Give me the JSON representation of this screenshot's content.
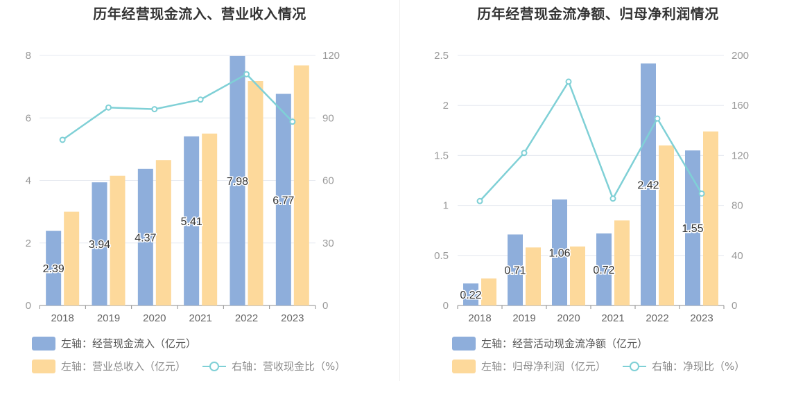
{
  "colors": {
    "blue": "#8eaedb",
    "orange": "#fdd99b",
    "line": "#7fd0d6",
    "grid": "#e6e9f0",
    "axis": "#999999"
  },
  "panels": [
    {
      "title": "历年经营现金流入、营业收入情况",
      "legend": [
        {
          "kind": "bar",
          "color": "blue",
          "label": "左轴：经营现金流入（亿元）"
        },
        {
          "kind": "bar",
          "color": "orange",
          "label": "左轴：营业总收入（亿元）"
        },
        {
          "kind": "line",
          "color": "line",
          "label": "右轴：营收现金比（%）"
        }
      ]
    },
    {
      "title": "历年经营现金流净额、归母净利润情况",
      "legend": [
        {
          "kind": "bar",
          "color": "blue",
          "label": "左轴：经营活动现金流净额（亿元）"
        },
        {
          "kind": "bar",
          "color": "orange",
          "label": "左轴：归母净利润（亿元）"
        },
        {
          "kind": "line",
          "color": "line",
          "label": "右轴：净现比（%）"
        }
      ]
    }
  ],
  "chart_data": [
    {
      "type": "bar",
      "title": "历年经营现金流入、营业收入情况",
      "categories": [
        "2018",
        "2019",
        "2020",
        "2021",
        "2022",
        "2023"
      ],
      "left_axis": {
        "range": [
          0,
          8
        ],
        "ticks": [
          "0",
          "2",
          "4",
          "6",
          "8"
        ],
        "tick_values": [
          0,
          2,
          4,
          6,
          8
        ]
      },
      "right_axis": {
        "range": [
          0,
          120
        ],
        "ticks": [
          "0",
          "30",
          "60",
          "90",
          "120"
        ],
        "tick_values": [
          0,
          30,
          60,
          90,
          120
        ]
      },
      "series": [
        {
          "name": "经营现金流入（亿元）",
          "type": "bar",
          "axis": "left",
          "color": "blue",
          "values": [
            2.39,
            3.94,
            4.37,
            5.41,
            7.98,
            6.77
          ],
          "labels": [
            "2.39",
            "3.94",
            "4.37",
            "5.41",
            "7.98",
            "6.77"
          ]
        },
        {
          "name": "营业总收入（亿元）",
          "type": "bar",
          "axis": "left",
          "color": "orange",
          "values": [
            3.0,
            4.15,
            4.65,
            5.5,
            7.18,
            7.68
          ]
        },
        {
          "name": "营收现金比（%）",
          "type": "line",
          "axis": "right",
          "color": "line",
          "values": [
            79.5,
            95,
            94.2,
            98.8,
            111,
            88.2
          ]
        }
      ],
      "grid": true
    },
    {
      "type": "bar",
      "title": "历年经营现金流净额、归母净利润情况",
      "categories": [
        "2018",
        "2019",
        "2020",
        "2021",
        "2022",
        "2023"
      ],
      "left_axis": {
        "range": [
          0,
          2.5
        ],
        "ticks": [
          "0",
          "0.5",
          "1",
          "1.5",
          "2",
          "2.5"
        ],
        "tick_values": [
          0,
          0.5,
          1,
          1.5,
          2,
          2.5
        ]
      },
      "right_axis": {
        "range": [
          0,
          200
        ],
        "ticks": [
          "0",
          "40",
          "80",
          "120",
          "160",
          "200"
        ],
        "tick_values": [
          0,
          40,
          80,
          120,
          160,
          200
        ]
      },
      "series": [
        {
          "name": "经营活动现金流净额（亿元）",
          "type": "bar",
          "axis": "left",
          "color": "blue",
          "values": [
            0.22,
            0.71,
            1.06,
            0.72,
            2.42,
            1.55
          ],
          "labels": [
            "0.22",
            "0.71",
            "1.06",
            "0.72",
            "2.42",
            "1.55"
          ]
        },
        {
          "name": "归母净利润（亿元）",
          "type": "bar",
          "axis": "left",
          "color": "orange",
          "values": [
            0.27,
            0.58,
            0.59,
            0.85,
            1.6,
            1.74
          ]
        },
        {
          "name": "净现比（%）",
          "type": "line",
          "axis": "right",
          "color": "line",
          "values": [
            83.5,
            122,
            179,
            85.5,
            149.5,
            89.5
          ]
        }
      ],
      "grid": true
    }
  ]
}
